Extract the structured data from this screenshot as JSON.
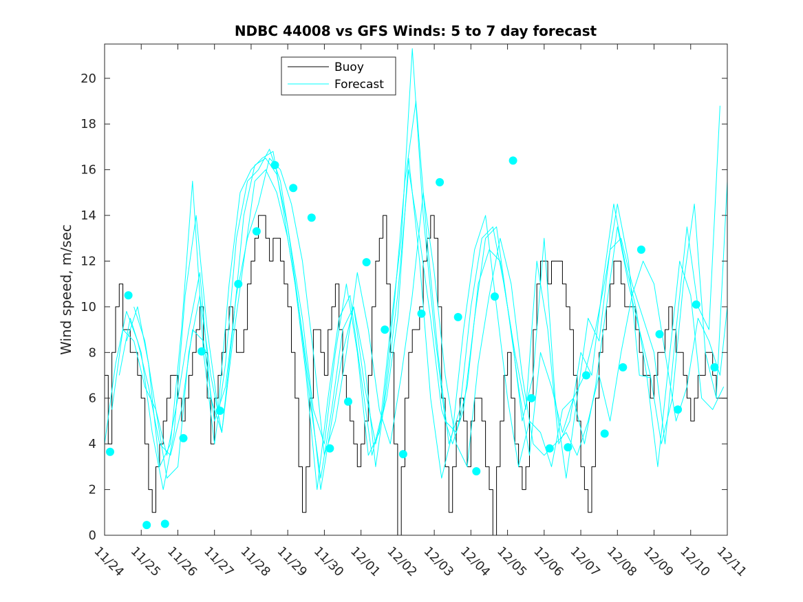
{
  "chart_data": {
    "type": "line",
    "title": "NDBC 44008 vs GFS Winds: 5 to 7 day forecast",
    "xlabel": "",
    "ylabel": "Wind speed, m/sec",
    "ylim": [
      0,
      21.5
    ],
    "xlim": [
      0,
      17
    ],
    "xticks": [
      "11/24",
      "11/25",
      "11/26",
      "11/27",
      "11/28",
      "11/29",
      "11/30",
      "12/01",
      "12/02",
      "12/03",
      "12/04",
      "12/05",
      "12/06",
      "12/07",
      "12/08",
      "12/09",
      "12/10",
      "12/11"
    ],
    "yticks": [
      0,
      2,
      4,
      6,
      8,
      10,
      12,
      14,
      16,
      18,
      20
    ],
    "legend": {
      "position": "top-center",
      "entries": [
        "Buoy",
        "Forecast"
      ]
    },
    "colors": {
      "buoy": "#000000",
      "forecast": "#00ffff",
      "marker": "#00ffff"
    },
    "series": [
      {
        "name": "Buoy",
        "x": [
          0,
          0.1,
          0.2,
          0.3,
          0.4,
          0.5,
          0.6,
          0.7,
          0.8,
          0.9,
          1.0,
          1.1,
          1.2,
          1.3,
          1.4,
          1.5,
          1.6,
          1.7,
          1.8,
          1.9,
          2.0,
          2.1,
          2.2,
          2.3,
          2.4,
          2.5,
          2.6,
          2.7,
          2.8,
          2.9,
          3.0,
          3.1,
          3.2,
          3.3,
          3.4,
          3.5,
          3.6,
          3.7,
          3.8,
          3.9,
          4.0,
          4.1,
          4.2,
          4.3,
          4.4,
          4.5,
          4.6,
          4.7,
          4.8,
          4.9,
          5.0,
          5.1,
          5.2,
          5.3,
          5.4,
          5.5,
          5.6,
          5.7,
          5.8,
          5.9,
          6.0,
          6.1,
          6.2,
          6.3,
          6.4,
          6.5,
          6.6,
          6.7,
          6.8,
          6.9,
          7.0,
          7.1,
          7.2,
          7.3,
          7.4,
          7.5,
          7.6,
          7.7,
          7.8,
          7.9,
          8.0,
          8.1,
          8.2,
          8.3,
          8.4,
          8.5,
          8.6,
          8.7,
          8.8,
          8.9,
          9.0,
          9.1,
          9.2,
          9.3,
          9.4,
          9.5,
          9.6,
          9.7,
          9.8,
          9.9,
          10.0,
          10.1,
          10.2,
          10.3,
          10.4,
          10.5,
          10.6,
          10.7,
          10.8,
          10.9,
          11.0,
          11.1,
          11.2,
          11.3,
          11.4,
          11.5,
          11.6,
          11.7,
          11.8,
          11.9,
          12.0,
          12.1,
          12.2,
          12.3,
          12.4,
          12.5,
          12.6,
          12.7,
          12.8,
          12.9,
          13.0,
          13.1,
          13.2,
          13.3,
          13.4,
          13.5,
          13.6,
          13.7,
          13.8,
          13.9,
          14.0,
          14.1,
          14.2,
          14.3,
          14.4,
          14.5,
          14.6,
          14.7,
          14.8,
          14.9,
          15.0,
          15.1,
          15.2,
          15.3,
          15.4,
          15.5,
          15.6,
          15.7,
          15.8,
          15.9,
          16.0,
          16.1,
          16.2,
          16.3,
          16.4,
          16.5,
          16.6,
          16.7,
          16.8,
          16.9,
          17.0
        ],
        "values": [
          7,
          4,
          8,
          10,
          11,
          9,
          9,
          8,
          8,
          7,
          6,
          4,
          2,
          1,
          3,
          4,
          5,
          6,
          7,
          7,
          6,
          5,
          6,
          7,
          8,
          9,
          10,
          8,
          6,
          4,
          6,
          7,
          8,
          9,
          10,
          9,
          8,
          8,
          9,
          11,
          12,
          13,
          14,
          14,
          13,
          12,
          13,
          13,
          12,
          11,
          10,
          8,
          6,
          3,
          1,
          3,
          6,
          9,
          9,
          8,
          7,
          9,
          10,
          11,
          9,
          7,
          6,
          5,
          4,
          3,
          4,
          5,
          7,
          10,
          12,
          13,
          14,
          11,
          8,
          4,
          0,
          3,
          6,
          8,
          9,
          9,
          10,
          12,
          13,
          14,
          13,
          10,
          6,
          3,
          1,
          3,
          5,
          6,
          5,
          3,
          5,
          6,
          6,
          5,
          3,
          2,
          0,
          3,
          5,
          7,
          8,
          6,
          4,
          3,
          2,
          3,
          6,
          9,
          11,
          12,
          12,
          11,
          12,
          12,
          12,
          11,
          10,
          9,
          7,
          5,
          3,
          2,
          1,
          3,
          6,
          8,
          9,
          10,
          11,
          12,
          12,
          11,
          10,
          10,
          10,
          9,
          8,
          7,
          7,
          6,
          7,
          8,
          8,
          9,
          10,
          9,
          8,
          8,
          7,
          6,
          5,
          6,
          7,
          7,
          8,
          8,
          7,
          6,
          6,
          6,
          6
        ]
      },
      {
        "name": "Forecast",
        "x": [
          0.0,
          0.3,
          0.6,
          0.9,
          1.2,
          1.5,
          1.8,
          2.1,
          2.4,
          2.7,
          3.0,
          3.3,
          3.6,
          3.9,
          4.2,
          4.5,
          4.8,
          5.1,
          5.4,
          5.7,
          6.0,
          6.3,
          6.6,
          6.9,
          7.2,
          7.5,
          7.8,
          8.1,
          8.4,
          8.7,
          9.0,
          9.3,
          9.6,
          9.9,
          10.2,
          10.5,
          10.8,
          11.1,
          11.4,
          11.7,
          12.0,
          12.3,
          12.6,
          12.9,
          13.2,
          13.5,
          13.8,
          14.1,
          14.4,
          14.7,
          15.0,
          15.3,
          15.6,
          15.9,
          16.2,
          16.5,
          16.8,
          17.0
        ],
        "values": [
          4.0,
          7.5,
          9.8,
          8.5,
          6.5,
          4.0,
          3.5,
          5.5,
          9.0,
          8.5,
          5.0,
          6.5,
          10.5,
          13.0,
          14.5,
          16.5,
          16.0,
          14.5,
          12.0,
          8.0,
          3.5,
          5.0,
          8.0,
          11.5,
          9.0,
          5.5,
          4.0,
          7.0,
          10.5,
          15.0,
          11.5,
          7.0,
          4.0,
          3.0,
          7.5,
          10.5,
          13.0,
          11.0,
          7.0,
          4.0,
          3.5,
          4.0,
          4.5,
          3.5,
          5.0,
          7.0,
          5.0,
          8.0,
          10.5,
          12.0,
          11.0,
          8.0,
          5.0,
          6.5,
          9.5,
          8.5,
          7.0,
          10.0
        ]
      },
      {
        "name": "Forecast",
        "x": [
          0.2,
          0.5,
          0.8,
          1.1,
          1.4,
          1.7,
          2.0,
          2.3,
          2.6,
          2.9,
          3.2,
          3.5,
          3.8,
          4.1,
          4.4,
          4.7,
          5.0,
          5.3,
          5.6,
          5.9,
          6.2,
          6.5,
          6.8,
          7.1,
          7.4,
          7.7,
          8.0,
          8.3,
          8.6,
          8.9,
          9.2,
          9.5,
          9.8,
          10.1,
          10.4,
          10.7,
          11.0,
          11.3,
          11.6,
          11.9,
          12.2,
          12.5,
          12.8,
          13.1,
          13.4,
          13.7,
          14.0,
          14.3,
          14.6,
          14.9,
          15.2,
          15.5,
          15.8,
          16.1,
          16.4,
          16.7,
          17.0
        ],
        "values": [
          5.5,
          9.0,
          8.5,
          6.5,
          5.5,
          2.5,
          3.0,
          8.0,
          10.5,
          7.0,
          4.5,
          8.5,
          12.0,
          15.5,
          16.0,
          15.0,
          13.0,
          10.0,
          6.0,
          2.5,
          5.5,
          9.0,
          10.0,
          6.5,
          4.0,
          6.0,
          9.5,
          16.5,
          12.0,
          6.0,
          2.5,
          4.5,
          9.0,
          12.5,
          14.0,
          10.0,
          6.0,
          3.0,
          5.0,
          4.5,
          3.0,
          5.5,
          6.0,
          4.0,
          6.5,
          10.0,
          13.5,
          11.0,
          9.0,
          7.0,
          4.0,
          6.0,
          11.0,
          14.5,
          8.0,
          6.0,
          15.5
        ]
      },
      {
        "name": "Forecast",
        "x": [
          0.4,
          0.7,
          1.0,
          1.3,
          1.6,
          1.9,
          2.2,
          2.5,
          2.8,
          3.1,
          3.4,
          3.7,
          4.0,
          4.3,
          4.6,
          4.9,
          5.2,
          5.5,
          5.8,
          6.1,
          6.4,
          6.7,
          7.0,
          7.3,
          7.6,
          7.9,
          8.2,
          8.5,
          8.8,
          9.1,
          9.4,
          9.7,
          10.0,
          10.3,
          10.6,
          10.9,
          11.2,
          11.5,
          11.8,
          12.1,
          12.4,
          12.7,
          13.0,
          13.3,
          13.6,
          13.9,
          14.2,
          14.5,
          14.8,
          15.1,
          15.4,
          15.7,
          16.0,
          16.3,
          16.6,
          16.9
        ],
        "values": [
          7.0,
          9.5,
          8.0,
          4.5,
          2.0,
          4.5,
          10.5,
          14.0,
          9.0,
          5.5,
          11.0,
          15.0,
          16.0,
          16.5,
          16.8,
          14.0,
          11.0,
          7.0,
          2.0,
          6.0,
          9.5,
          10.5,
          7.0,
          3.5,
          5.5,
          10.0,
          15.5,
          19.0,
          13.0,
          8.0,
          4.0,
          5.5,
          10.0,
          13.0,
          13.5,
          11.0,
          8.0,
          5.5,
          12.0,
          9.0,
          4.0,
          5.0,
          8.0,
          7.0,
          11.0,
          14.5,
          12.0,
          10.0,
          7.0,
          3.0,
          7.5,
          12.0,
          10.5,
          6.0,
          5.5,
          6.5
        ]
      },
      {
        "name": "Forecast",
        "x": [
          0.6,
          0.9,
          1.2,
          1.5,
          1.8,
          2.1,
          2.4,
          2.7,
          3.0,
          3.3,
          3.6,
          3.9,
          4.2,
          4.5,
          4.8,
          5.1,
          5.4,
          5.7,
          6.0,
          6.3,
          6.6,
          6.9,
          7.2,
          7.5,
          7.8,
          8.1,
          8.4,
          8.7,
          9.0,
          9.3,
          9.6,
          9.9,
          10.2,
          10.5,
          10.8,
          11.1,
          11.4,
          11.7,
          12.0,
          12.3,
          12.6,
          12.9,
          13.2,
          13.5,
          13.8,
          14.1,
          14.4,
          14.7,
          15.0,
          15.3,
          15.6,
          15.9,
          16.2,
          16.5,
          16.8
        ],
        "values": [
          8.5,
          10.0,
          7.5,
          3.0,
          4.0,
          9.0,
          15.5,
          8.0,
          4.0,
          7.5,
          13.0,
          15.5,
          16.0,
          16.9,
          15.5,
          12.5,
          9.5,
          5.5,
          4.0,
          8.0,
          11.0,
          8.0,
          3.5,
          4.5,
          9.0,
          13.0,
          21.3,
          14.0,
          9.0,
          5.0,
          4.5,
          6.5,
          11.0,
          12.5,
          12.0,
          9.0,
          5.0,
          7.0,
          13.0,
          6.0,
          2.5,
          6.0,
          9.5,
          8.5,
          12.5,
          13.0,
          11.0,
          9.5,
          8.0,
          4.0,
          9.0,
          13.5,
          10.0,
          9.0,
          18.8
        ]
      },
      {
        "name": "Forecast",
        "x": [
          0.8,
          1.1,
          1.4,
          1.7,
          2.0,
          2.3,
          2.6,
          2.9,
          3.2,
          3.5,
          3.8,
          4.1,
          4.4,
          4.7,
          5.0,
          5.3,
          5.6,
          5.9,
          6.2,
          6.5,
          6.8,
          7.1,
          7.4,
          7.7,
          8.0,
          8.3,
          8.6,
          8.9,
          9.2,
          9.5,
          9.8,
          10.1,
          10.4,
          10.7,
          11.0,
          11.3,
          11.6,
          11.9,
          12.2,
          12.5,
          12.8,
          13.1,
          13.4,
          13.7,
          14.0,
          14.3,
          14.6,
          14.9
        ],
        "values": [
          10.0,
          8.5,
          5.5,
          3.5,
          6.0,
          9.0,
          11.5,
          6.0,
          4.5,
          9.0,
          14.0,
          16.2,
          16.5,
          15.8,
          13.5,
          10.0,
          6.5,
          2.0,
          5.0,
          8.0,
          10.0,
          7.5,
          3.0,
          6.5,
          10.5,
          16.0,
          13.0,
          9.5,
          5.5,
          4.0,
          5.5,
          9.5,
          13.0,
          13.5,
          10.0,
          6.5,
          3.5,
          8.0,
          6.5,
          4.5,
          6.0,
          7.0,
          9.0,
          11.5,
          14.5,
          12.0,
          7.0,
          6.9
        ]
      }
    ],
    "markers": {
      "x": [
        0.15,
        0.65,
        1.15,
        1.65,
        2.15,
        2.65,
        3.15,
        3.65,
        4.15,
        4.65,
        5.15,
        5.65,
        6.15,
        6.65,
        7.15,
        7.65,
        8.15,
        8.65,
        9.15,
        9.65,
        10.15,
        10.65,
        11.15,
        11.65,
        12.15,
        12.65,
        13.15,
        13.65,
        14.15,
        14.65,
        15.15,
        15.65,
        16.15,
        16.65
      ],
      "values": [
        3.65,
        10.5,
        0.45,
        0.5,
        4.25,
        8.05,
        5.45,
        11.0,
        13.3,
        16.2,
        15.2,
        13.9,
        3.8,
        5.85,
        11.95,
        9.0,
        3.55,
        9.7,
        15.45,
        9.55,
        2.8,
        10.45,
        16.4,
        6.0,
        3.8,
        3.85,
        7.0,
        4.45,
        7.35,
        12.5,
        8.8,
        5.5,
        10.1,
        7.35
      ]
    }
  }
}
